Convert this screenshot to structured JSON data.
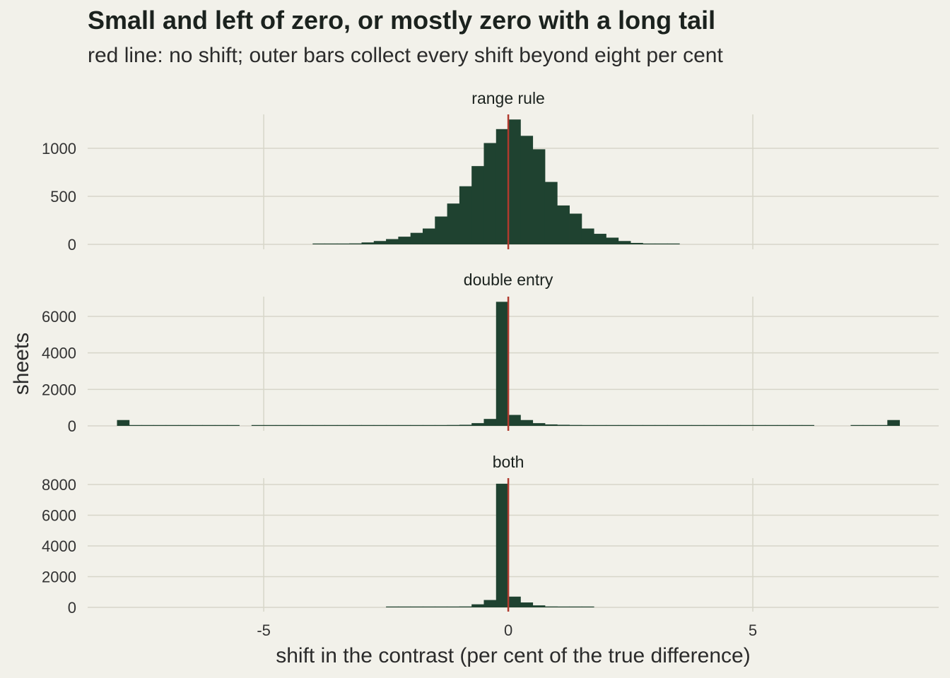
{
  "title": "Small and left of zero, or mostly zero with a long tail",
  "subtitle": "red line: no shift; outer bars collect every shift beyond eight per cent",
  "colors": {
    "background": "#f2f1ea",
    "bar": "#1f4230",
    "reference_line": "#b03a2e",
    "grid": "#d7d6c9"
  },
  "chart_data": {
    "type": "bar",
    "title": "Small and left of zero, or mostly zero with a long tail",
    "subtitle": "red line: no shift; outer bars collect every shift beyond eight per cent",
    "xlabel": "shift in the contrast (per cent of the true difference)",
    "ylabel": "sheets",
    "xlim": [
      -8.6,
      8.8
    ],
    "x_ticks": [
      -5,
      0,
      5
    ],
    "x_tick_labels": [
      "-5",
      "0",
      "5"
    ],
    "reference_line_x": 0,
    "bin_width": 0.25,
    "grid": true,
    "panels": [
      {
        "name": "range rule",
        "ylim": [
          0,
          1350
        ],
        "y_ticks": [
          0,
          500,
          1000
        ],
        "y_tick_labels": [
          "0",
          "500",
          "1000"
        ],
        "bins": [
          {
            "x": -3.875,
            "y": 3
          },
          {
            "x": -3.625,
            "y": 5
          },
          {
            "x": -3.375,
            "y": 7
          },
          {
            "x": -3.125,
            "y": 10
          },
          {
            "x": -2.875,
            "y": 20
          },
          {
            "x": -2.625,
            "y": 35
          },
          {
            "x": -2.375,
            "y": 55
          },
          {
            "x": -2.125,
            "y": 80
          },
          {
            "x": -1.875,
            "y": 120
          },
          {
            "x": -1.625,
            "y": 165
          },
          {
            "x": -1.375,
            "y": 290
          },
          {
            "x": -1.125,
            "y": 425
          },
          {
            "x": -0.875,
            "y": 605
          },
          {
            "x": -0.625,
            "y": 815
          },
          {
            "x": -0.375,
            "y": 1055
          },
          {
            "x": -0.125,
            "y": 1200
          },
          {
            "x": 0.125,
            "y": 1300
          },
          {
            "x": 0.375,
            "y": 1130
          },
          {
            "x": 0.625,
            "y": 990
          },
          {
            "x": 0.875,
            "y": 650
          },
          {
            "x": 1.125,
            "y": 405
          },
          {
            "x": 1.375,
            "y": 320
          },
          {
            "x": 1.625,
            "y": 165
          },
          {
            "x": 1.875,
            "y": 110
          },
          {
            "x": 2.125,
            "y": 70
          },
          {
            "x": 2.375,
            "y": 35
          },
          {
            "x": 2.625,
            "y": 15
          },
          {
            "x": 2.875,
            "y": 8
          },
          {
            "x": 3.125,
            "y": 5
          },
          {
            "x": 3.375,
            "y": 3
          }
        ]
      },
      {
        "name": "double entry",
        "ylim": [
          0,
          7000
        ],
        "y_ticks": [
          0,
          2000,
          4000,
          6000
        ],
        "y_tick_labels": [
          "0",
          "2000",
          "4000",
          "6000"
        ],
        "bins": [
          {
            "x": -7.875,
            "y": 320
          },
          {
            "x": -7.625,
            "y": 20
          },
          {
            "x": -7.375,
            "y": 20
          },
          {
            "x": -7.125,
            "y": 20
          },
          {
            "x": -6.875,
            "y": 20
          },
          {
            "x": -6.625,
            "y": 20
          },
          {
            "x": -6.375,
            "y": 20
          },
          {
            "x": -6.125,
            "y": 20
          },
          {
            "x": -5.875,
            "y": 20
          },
          {
            "x": -5.625,
            "y": 20
          },
          {
            "x": -5.125,
            "y": 15
          },
          {
            "x": -4.875,
            "y": 15
          },
          {
            "x": -4.625,
            "y": 15
          },
          {
            "x": -4.375,
            "y": 15
          },
          {
            "x": -4.125,
            "y": 15
          },
          {
            "x": -3.875,
            "y": 15
          },
          {
            "x": -3.625,
            "y": 15
          },
          {
            "x": -3.375,
            "y": 15
          },
          {
            "x": -3.125,
            "y": 15
          },
          {
            "x": -2.875,
            "y": 15
          },
          {
            "x": -2.625,
            "y": 15
          },
          {
            "x": -2.375,
            "y": 15
          },
          {
            "x": -2.125,
            "y": 15
          },
          {
            "x": -1.875,
            "y": 15
          },
          {
            "x": -1.625,
            "y": 20
          },
          {
            "x": -1.375,
            "y": 40
          },
          {
            "x": -1.125,
            "y": 50
          },
          {
            "x": -0.875,
            "y": 60
          },
          {
            "x": -0.625,
            "y": 150
          },
          {
            "x": -0.375,
            "y": 380
          },
          {
            "x": -0.125,
            "y": 6800
          },
          {
            "x": 0.125,
            "y": 600
          },
          {
            "x": 0.375,
            "y": 320
          },
          {
            "x": 0.625,
            "y": 150
          },
          {
            "x": 0.875,
            "y": 80
          },
          {
            "x": 1.125,
            "y": 60
          },
          {
            "x": 1.375,
            "y": 50
          },
          {
            "x": 1.625,
            "y": 25
          },
          {
            "x": 1.875,
            "y": 20
          },
          {
            "x": 2.125,
            "y": 15
          },
          {
            "x": 2.375,
            "y": 15
          },
          {
            "x": 2.625,
            "y": 15
          },
          {
            "x": 2.875,
            "y": 15
          },
          {
            "x": 3.125,
            "y": 15
          },
          {
            "x": 3.375,
            "y": 15
          },
          {
            "x": 3.625,
            "y": 15
          },
          {
            "x": 3.875,
            "y": 15
          },
          {
            "x": 4.125,
            "y": 15
          },
          {
            "x": 4.375,
            "y": 15
          },
          {
            "x": 4.625,
            "y": 15
          },
          {
            "x": 4.875,
            "y": 15
          },
          {
            "x": 5.125,
            "y": 15
          },
          {
            "x": 5.375,
            "y": 15
          },
          {
            "x": 5.625,
            "y": 15
          },
          {
            "x": 5.875,
            "y": 15
          },
          {
            "x": 6.125,
            "y": 15
          },
          {
            "x": 7.125,
            "y": 5
          },
          {
            "x": 7.375,
            "y": 5
          },
          {
            "x": 7.625,
            "y": 5
          },
          {
            "x": 7.875,
            "y": 320
          }
        ]
      },
      {
        "name": "both",
        "ylim": [
          0,
          8400
        ],
        "y_ticks": [
          0,
          2000,
          4000,
          6000,
          8000
        ],
        "y_tick_labels": [
          "0",
          "2000",
          "4000",
          "6000",
          "8000"
        ],
        "bins": [
          {
            "x": -2.375,
            "y": 3
          },
          {
            "x": -2.125,
            "y": 3
          },
          {
            "x": -1.875,
            "y": 5
          },
          {
            "x": -1.625,
            "y": 10
          },
          {
            "x": -1.375,
            "y": 25
          },
          {
            "x": -1.125,
            "y": 30
          },
          {
            "x": -0.875,
            "y": 60
          },
          {
            "x": -0.625,
            "y": 200
          },
          {
            "x": -0.375,
            "y": 480
          },
          {
            "x": -0.125,
            "y": 8050
          },
          {
            "x": 0.125,
            "y": 700
          },
          {
            "x": 0.375,
            "y": 320
          },
          {
            "x": 0.625,
            "y": 130
          },
          {
            "x": 0.875,
            "y": 60
          },
          {
            "x": 1.125,
            "y": 25
          },
          {
            "x": 1.375,
            "y": 15
          },
          {
            "x": 1.625,
            "y": 5
          }
        ]
      }
    ]
  }
}
